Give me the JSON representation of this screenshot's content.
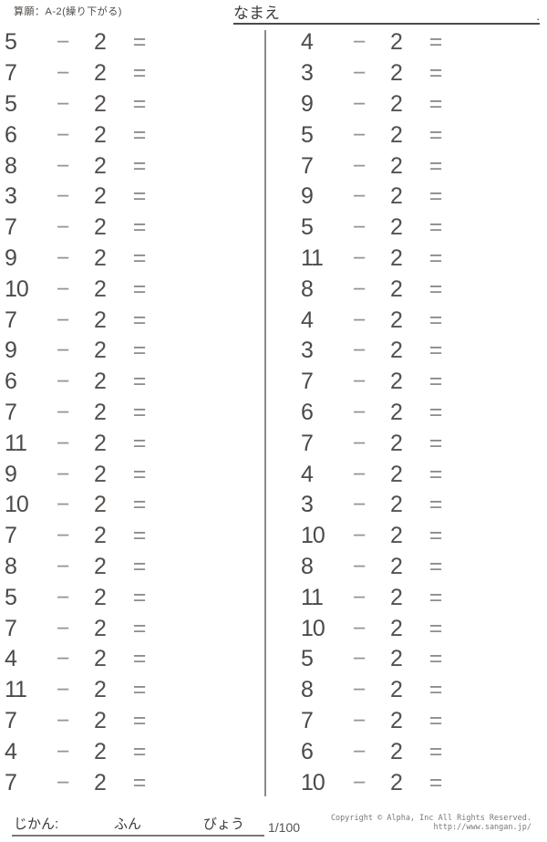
{
  "header": {
    "worksheet_label": "算願：A-2(繰り下がる)",
    "name_label": "なまえ",
    "name_line_period": "."
  },
  "problems": {
    "operator": "−",
    "subtrahend": "2",
    "equals_sign": "=",
    "left_column": [
      5,
      7,
      5,
      6,
      8,
      3,
      7,
      9,
      10,
      7,
      9,
      6,
      7,
      11,
      9,
      10,
      7,
      8,
      5,
      7,
      4,
      11,
      7,
      4,
      7
    ],
    "right_column": [
      4,
      3,
      9,
      5,
      7,
      9,
      5,
      11,
      8,
      4,
      3,
      7,
      6,
      7,
      4,
      3,
      10,
      8,
      11,
      10,
      5,
      8,
      7,
      6,
      10
    ]
  },
  "footer": {
    "time_label": "じかん:",
    "minutes_label": "ふん",
    "seconds_label": "びょう",
    "page_indicator": "1/100",
    "copyright": "Copyright © Alpha, Inc All Rights Reserved.",
    "website": "http://www.sangan.jp/"
  },
  "colors": {
    "ink": "#4a4a48",
    "operator_gray": "#949290",
    "divider_gray": "#8a8a8a"
  }
}
